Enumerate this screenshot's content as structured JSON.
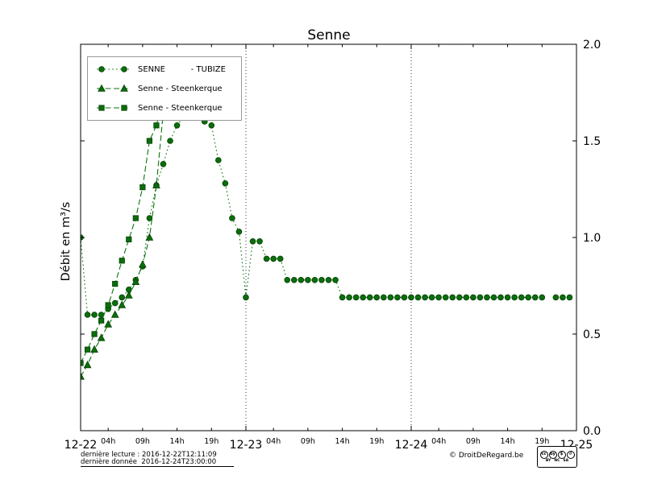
{
  "chart_data": {
    "type": "line",
    "title": "Senne",
    "ylabel": "Débit en m³/s",
    "ylim": [
      0.0,
      2.0
    ],
    "yticks": [
      "0.0",
      "0.5",
      "1.0",
      "1.5",
      "2.0"
    ],
    "x_hours_total": 72,
    "x_major_ticks": [
      {
        "hour": 0,
        "label": "12-22"
      },
      {
        "hour": 24,
        "label": "12-23"
      },
      {
        "hour": 48,
        "label": "12-24"
      },
      {
        "hour": 72,
        "label": "12-25"
      }
    ],
    "x_minor_ticks": [
      {
        "hour": 4,
        "label": "04h"
      },
      {
        "hour": 9,
        "label": "09h"
      },
      {
        "hour": 14,
        "label": "14h"
      },
      {
        "hour": 19,
        "label": "19h"
      },
      {
        "hour": 28,
        "label": "04h"
      },
      {
        "hour": 33,
        "label": "09h"
      },
      {
        "hour": 38,
        "label": "14h"
      },
      {
        "hour": 43,
        "label": "19h"
      },
      {
        "hour": 52,
        "label": "04h"
      },
      {
        "hour": 57,
        "label": "09h"
      },
      {
        "hour": 62,
        "label": "14h"
      },
      {
        "hour": 67,
        "label": "19h"
      }
    ],
    "grid_hours": [
      24,
      48
    ],
    "grid_on": true,
    "legend_position": "upper-left",
    "colors": {
      "line": "#0c730c",
      "marker_fill": "#0b6e0b",
      "marker_edge": "#043f04"
    },
    "series": [
      {
        "name": "SENNE          - TUBIZE",
        "marker": "circle",
        "dash": "dotted",
        "points": [
          [
            0,
            1.0
          ],
          [
            1,
            0.6
          ],
          [
            2,
            0.6
          ],
          [
            3,
            0.6
          ],
          [
            4,
            0.63
          ],
          [
            5,
            0.66
          ],
          [
            6,
            0.69
          ],
          [
            7,
            0.73
          ],
          [
            8,
            0.78
          ],
          [
            9,
            0.85
          ],
          [
            10,
            1.1
          ],
          [
            11,
            1.27
          ],
          [
            12,
            1.38
          ],
          [
            13,
            1.5
          ],
          [
            14,
            1.58
          ],
          [
            15,
            1.63
          ],
          [
            16,
            1.65
          ],
          [
            17,
            1.63
          ],
          [
            18,
            1.6
          ],
          [
            19,
            1.58
          ],
          [
            20,
            1.4
          ],
          [
            21,
            1.28
          ],
          [
            22,
            1.1
          ],
          [
            23,
            1.03
          ],
          [
            24,
            0.69
          ],
          [
            25,
            0.98
          ],
          [
            26,
            0.98
          ],
          [
            27,
            0.89
          ],
          [
            28,
            0.89
          ],
          [
            29,
            0.89
          ],
          [
            30,
            0.78
          ],
          [
            31,
            0.78
          ],
          [
            32,
            0.78
          ],
          [
            33,
            0.78
          ],
          [
            34,
            0.78
          ],
          [
            35,
            0.78
          ],
          [
            36,
            0.78
          ],
          [
            37,
            0.78
          ],
          [
            38,
            0.69
          ],
          [
            39,
            0.69
          ],
          [
            40,
            0.69
          ],
          [
            41,
            0.69
          ],
          [
            42,
            0.69
          ],
          [
            43,
            0.69
          ],
          [
            44,
            0.69
          ],
          [
            45,
            0.69
          ],
          [
            46,
            0.69
          ],
          [
            47,
            0.69
          ],
          [
            48,
            0.69
          ],
          [
            49,
            0.69
          ],
          [
            50,
            0.69
          ],
          [
            51,
            0.69
          ],
          [
            52,
            0.69
          ],
          [
            53,
            0.69
          ],
          [
            54,
            0.69
          ],
          [
            55,
            0.69
          ],
          [
            56,
            0.69
          ],
          [
            57,
            0.69
          ],
          [
            58,
            0.69
          ],
          [
            59,
            0.69
          ],
          [
            60,
            0.69
          ],
          [
            61,
            0.69
          ],
          [
            62,
            0.69
          ],
          [
            63,
            0.69
          ],
          [
            64,
            0.69
          ],
          [
            65,
            0.69
          ],
          [
            66,
            0.69
          ],
          [
            67,
            0.69
          ],
          [
            69,
            0.69
          ],
          [
            70,
            0.69
          ],
          [
            71,
            0.69
          ]
        ]
      },
      {
        "name": "Senne - Steenkerque",
        "marker": "triangle",
        "dash": "dashed",
        "points": [
          [
            0,
            0.28
          ],
          [
            1,
            0.34
          ],
          [
            2,
            0.42
          ],
          [
            3,
            0.48
          ],
          [
            4,
            0.55
          ],
          [
            5,
            0.6
          ],
          [
            6,
            0.65
          ],
          [
            7,
            0.7
          ],
          [
            8,
            0.77
          ],
          [
            9,
            0.86
          ],
          [
            10,
            1.0
          ],
          [
            11,
            1.27
          ],
          [
            12,
            1.65
          ]
        ]
      },
      {
        "name": "Senne - Steenkerque",
        "marker": "square",
        "dash": "dashed",
        "points": [
          [
            0,
            0.35
          ],
          [
            1,
            0.42
          ],
          [
            2,
            0.5
          ],
          [
            3,
            0.57
          ],
          [
            4,
            0.65
          ],
          [
            5,
            0.76
          ],
          [
            6,
            0.88
          ],
          [
            7,
            0.99
          ],
          [
            8,
            1.1
          ],
          [
            9,
            1.26
          ],
          [
            10,
            1.5
          ],
          [
            11,
            1.58
          ],
          [
            12,
            1.72
          ]
        ]
      }
    ]
  },
  "footer": {
    "line1": "dernière lecture : 2016-12-22T12:11:09",
    "line2": "dernière donnée  2016-12-24T23:00:00",
    "copyright": "© DroitDeRegard.be"
  },
  "cc_badge": {
    "icons": [
      {
        "name": "cc-icon",
        "glyph": "cc"
      },
      {
        "name": "cc-by-icon",
        "glyph": "by"
      },
      {
        "name": "cc-nc-icon",
        "glyph": "$"
      },
      {
        "name": "cc-sa-icon",
        "glyph": "↺"
      }
    ],
    "labels": [
      "BY",
      "NC",
      "SA"
    ]
  }
}
